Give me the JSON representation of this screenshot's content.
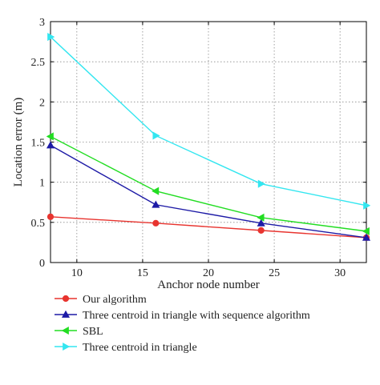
{
  "chart_data": {
    "type": "line",
    "xlabel": "Anchor node number",
    "ylabel": "Location error (m)",
    "xlim": [
      8,
      32
    ],
    "ylim": [
      0,
      3
    ],
    "xticks": [
      10,
      15,
      20,
      25,
      30
    ],
    "yticks": [
      0,
      0.5,
      1,
      1.5,
      2,
      2.5,
      3
    ],
    "xtick_labels": [
      "10",
      "15",
      "20",
      "25",
      "30"
    ],
    "ytick_labels": [
      "0",
      "0.5",
      "1",
      "1.5",
      "2",
      "2.5",
      "3"
    ],
    "grid": true,
    "legend_position": "below",
    "x": [
      8,
      16,
      24,
      32
    ],
    "series": [
      {
        "name": "Our algorithm",
        "color": "#e8342f",
        "marker": "circle",
        "values": [
          0.57,
          0.49,
          0.4,
          0.31
        ]
      },
      {
        "name": "Three centroid in triangle with sequence algorithm",
        "color": "#1d1aa6",
        "marker": "triangle-up",
        "values": [
          1.46,
          0.72,
          0.49,
          0.31
        ]
      },
      {
        "name": "SBL",
        "color": "#22dd22",
        "marker": "triangle-left",
        "values": [
          1.57,
          0.89,
          0.56,
          0.39
        ]
      },
      {
        "name": "Three centroid in triangle",
        "color": "#33e6f0",
        "marker": "triangle-right",
        "values": [
          2.81,
          1.58,
          0.98,
          0.71
        ]
      }
    ]
  }
}
